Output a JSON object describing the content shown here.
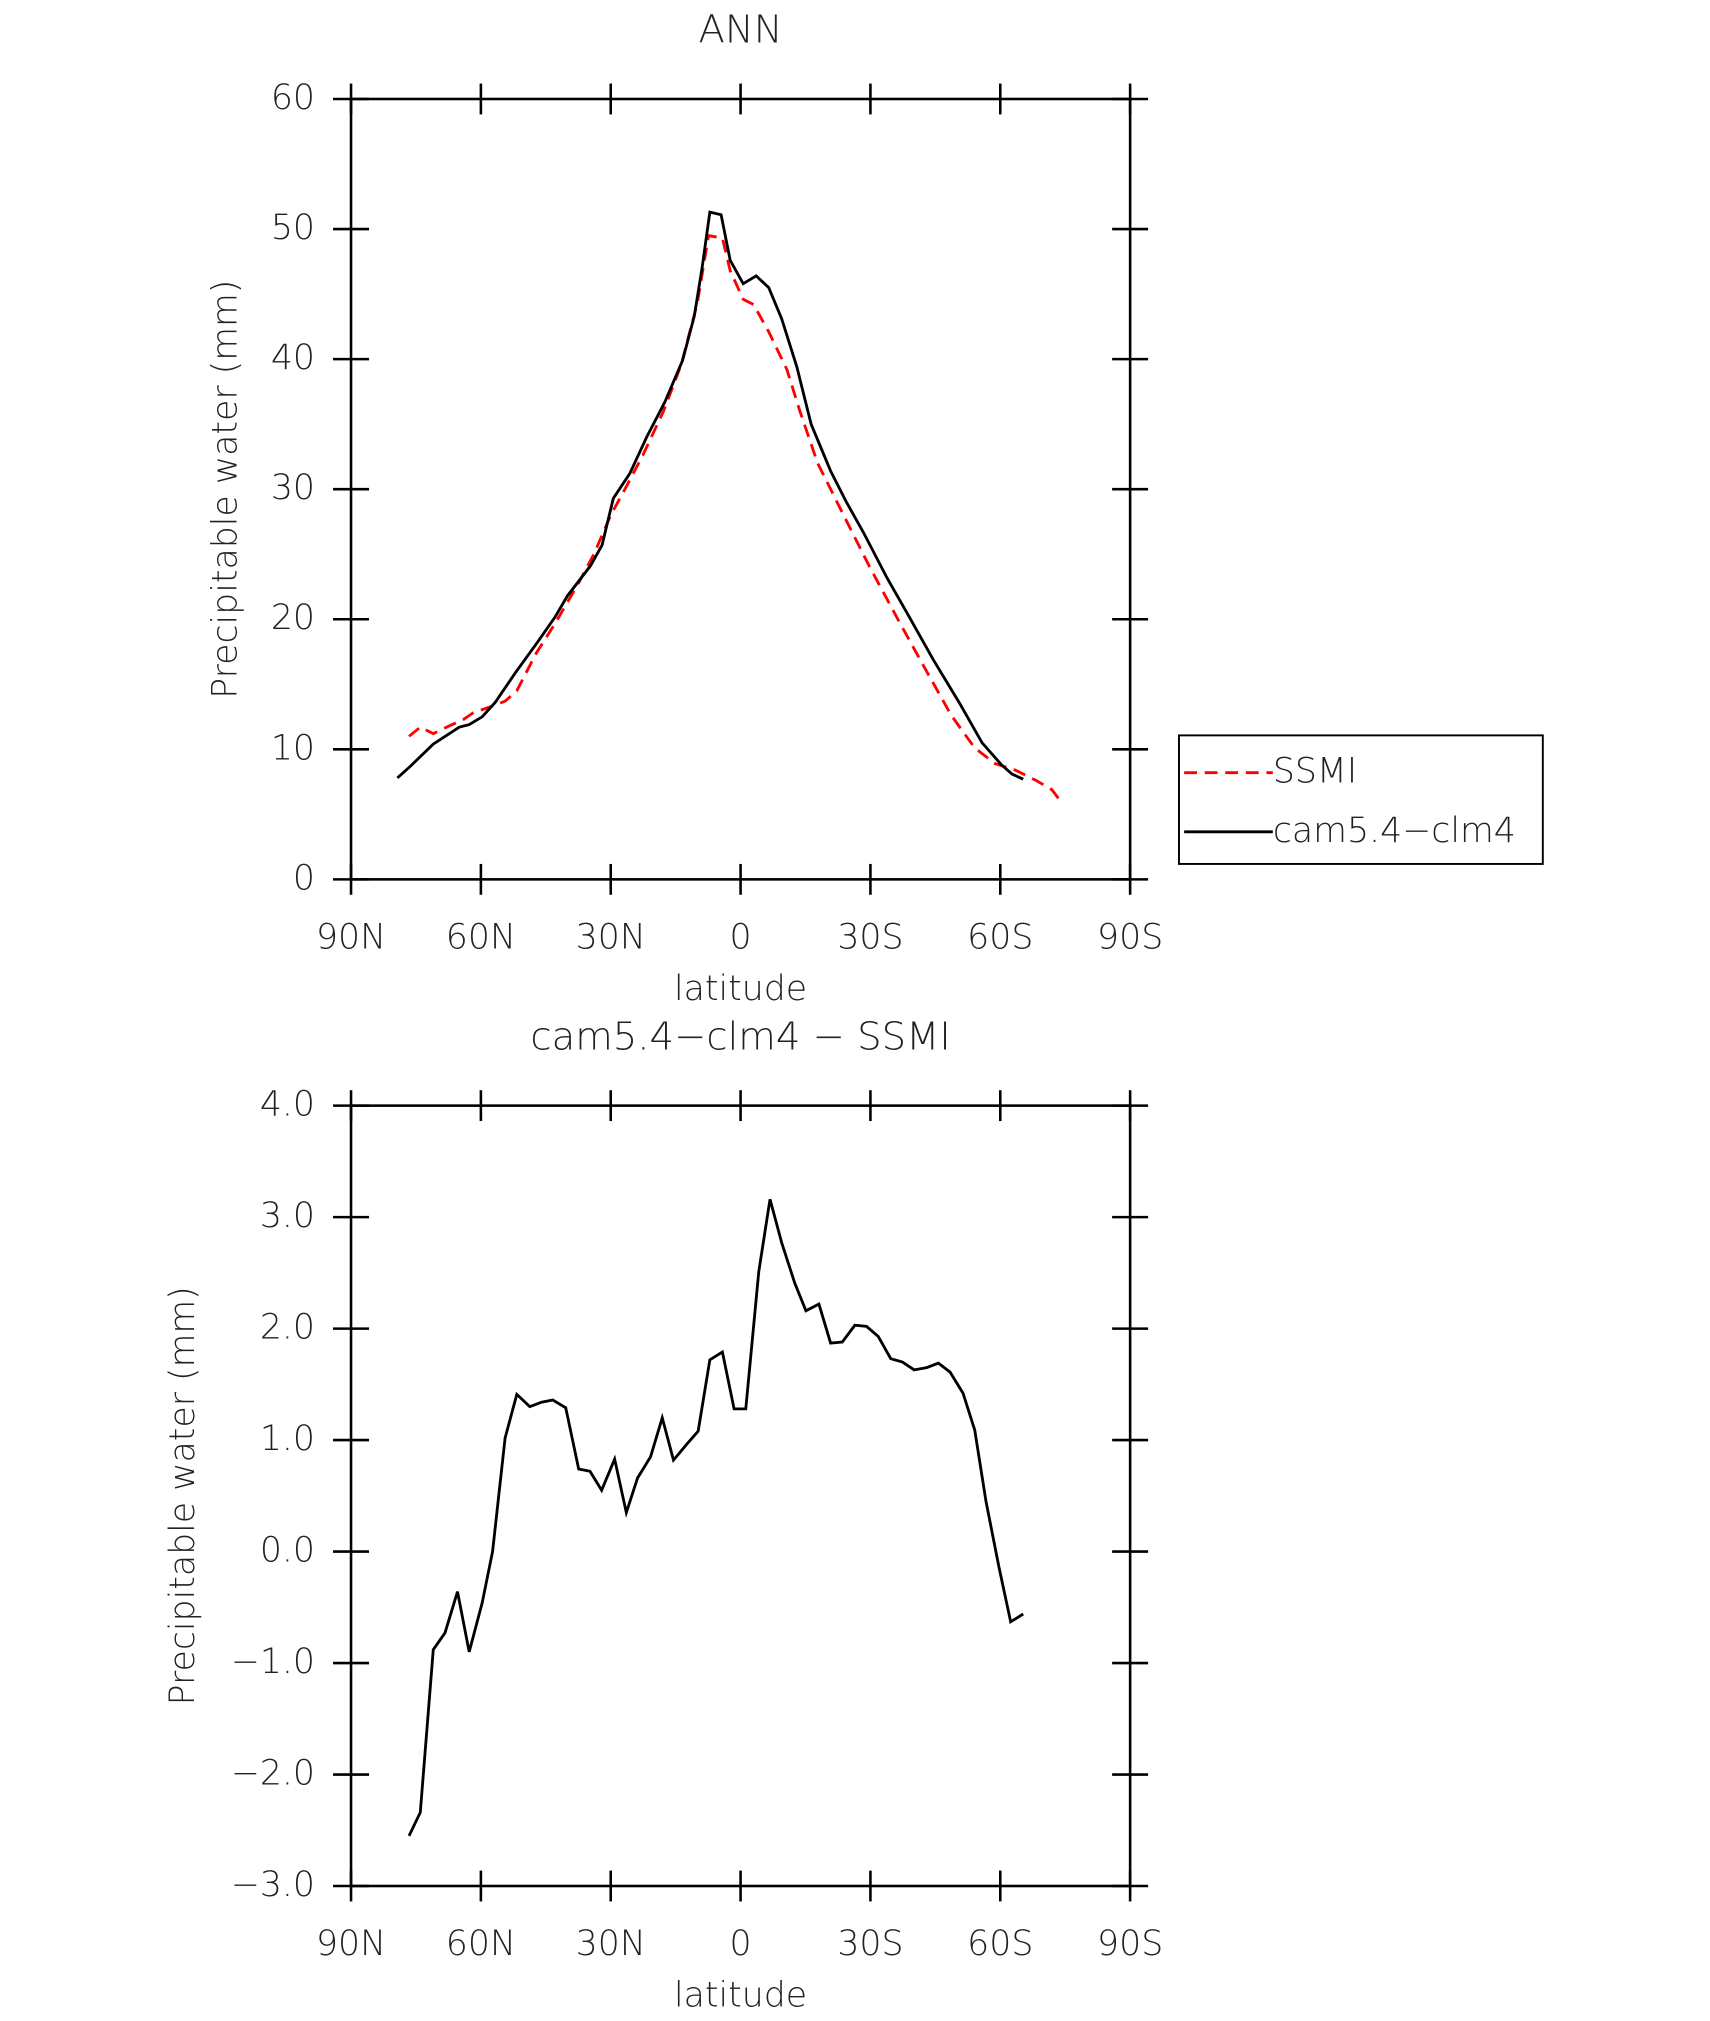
{
  "chart_data": [
    {
      "type": "line",
      "title": "ANN",
      "x_label": "latitude",
      "y_label": "Precipitable water (mm)",
      "xlim": [
        90,
        -90
      ],
      "xticks": [
        {
          "value": 90,
          "label": "90N"
        },
        {
          "value": 60,
          "label": "60N"
        },
        {
          "value": 30,
          "label": "30N"
        },
        0,
        {
          "value": -30,
          "label": "30S"
        },
        {
          "value": -60,
          "label": "60S"
        },
        {
          "value": -90,
          "label": "90S"
        }
      ],
      "ylim": [
        0,
        60
      ],
      "yticks": [
        0,
        10,
        20,
        30,
        40,
        50,
        60
      ],
      "legend": "right",
      "series": [
        {
          "name": "SSMI",
          "color": "#ff0000",
          "style": "dashed",
          "x": [
            76.6,
            74,
            71,
            68.6,
            64,
            61.8,
            56.7,
            54.4,
            51.7,
            47.2,
            42.8,
            37.4,
            33.9,
            30,
            26.4,
            22.6,
            17.8,
            13.7,
            10,
            7.4,
            4.2,
            2.4,
            -0.6,
            -3,
            -6.5,
            -10.7,
            -13.7,
            -17.8,
            -23.2,
            -29.7,
            -36.5,
            -42.8,
            -48.7,
            -54.1,
            -58.8,
            -63.5,
            -68.3,
            -71.9,
            -74.2
          ],
          "values": [
            11.0,
            11.7,
            11.2,
            11.6,
            12.3,
            12.8,
            13.4,
            13.7,
            14.5,
            17.4,
            19.7,
            22.8,
            25.0,
            28.0,
            30.2,
            32.6,
            36.0,
            39.6,
            44.3,
            49.5,
            49.3,
            46.8,
            44.6,
            44.2,
            42.1,
            39.2,
            36.0,
            32.0,
            28.4,
            24.1,
            19.9,
            16.1,
            12.6,
            10.1,
            8.9,
            8.4,
            7.6,
            6.9,
            5.9
          ]
        },
        {
          "name": "cam5.4−clm4",
          "color": "#000000",
          "style": "solid",
          "x": [
            79.3,
            76.6,
            71,
            65,
            62.7,
            59.7,
            56.7,
            52,
            47,
            42.8,
            40,
            34.7,
            32,
            29.4,
            25.6,
            21.7,
            17.5,
            13.4,
            10.7,
            8.9,
            7.1,
            4.5,
            2.4,
            -0.6,
            -3.6,
            -6.5,
            -9.5,
            -13,
            -16.3,
            -20.8,
            -24.3,
            -28.5,
            -33.8,
            -38.6,
            -44.5,
            -50.5,
            -55.8,
            -60.3,
            -62.7,
            -65.3
          ],
          "values": [
            7.8,
            8.6,
            10.4,
            11.7,
            11.9,
            12.5,
            13.6,
            15.9,
            18.2,
            20.2,
            21.8,
            24.1,
            25.7,
            29.3,
            31.2,
            34.0,
            36.7,
            39.9,
            43.3,
            47.0,
            51.3,
            51.1,
            47.6,
            45.8,
            46.4,
            45.5,
            43.1,
            39.4,
            35.0,
            31.4,
            29.1,
            26.6,
            23.2,
            20.4,
            16.9,
            13.6,
            10.5,
            8.8,
            8.1,
            7.7
          ]
        }
      ]
    },
    {
      "type": "line",
      "title": "cam5.4−clm4 − SSMI",
      "x_label": "latitude",
      "y_label": "Precipitable water (mm)",
      "xlim": [
        90,
        -90
      ],
      "xticks": [
        {
          "value": 90,
          "label": "90N"
        },
        {
          "value": 60,
          "label": "60N"
        },
        {
          "value": 30,
          "label": "30N"
        },
        0,
        {
          "value": -30,
          "label": "30S"
        },
        {
          "value": -60,
          "label": "60S"
        },
        {
          "value": -90,
          "label": "90S"
        }
      ],
      "ylim": [
        -3,
        4
      ],
      "yticks": [
        {
          "value": -3,
          "label": "−3.0"
        },
        {
          "value": -2,
          "label": "−2.0"
        },
        {
          "value": -1,
          "label": "−1.0"
        },
        {
          "value": 0,
          "label": "0.0"
        },
        {
          "value": 1,
          "label": "1.0"
        },
        {
          "value": 2,
          "label": "2.0"
        },
        {
          "value": 3,
          "label": "3.0"
        },
        {
          "value": 4,
          "label": "4.0"
        }
      ],
      "color": "#000000",
      "x": [
        76.6,
        74,
        71,
        68.3,
        65.4,
        62.7,
        59.7,
        57.3,
        54.4,
        51.7,
        48.7,
        46,
        43.4,
        40.4,
        37.4,
        34.8,
        32.1,
        29.1,
        26.4,
        23.8,
        20.8,
        18.1,
        15.5,
        12.5,
        9.8,
        7.1,
        4.2,
        1.5,
        -1.2,
        -4.2,
        -6.8,
        -9.5,
        -12.5,
        -15.1,
        -18.1,
        -20.8,
        -23.5,
        -26.4,
        -29.1,
        -31.8,
        -34.7,
        -37.4,
        -40.1,
        -43,
        -45.7,
        -48.4,
        -51.4,
        -54.1,
        -56.7,
        -59.7,
        -62.4,
        -65.3
      ],
      "values": [
        -2.55,
        -2.34,
        -0.88,
        -0.73,
        -0.36,
        -0.9,
        -0.46,
        0.0,
        1.02,
        1.41,
        1.3,
        1.34,
        1.36,
        1.29,
        0.74,
        0.72,
        0.55,
        0.83,
        0.35,
        0.66,
        0.85,
        1.2,
        0.82,
        0.96,
        1.08,
        1.72,
        1.79,
        1.28,
        1.28,
        2.51,
        3.16,
        2.77,
        2.41,
        2.16,
        2.22,
        1.87,
        1.88,
        2.03,
        2.02,
        1.93,
        1.73,
        1.7,
        1.63,
        1.65,
        1.69,
        1.61,
        1.42,
        1.09,
        0.45,
        -0.14,
        -0.63,
        -0.56
      ]
    }
  ]
}
